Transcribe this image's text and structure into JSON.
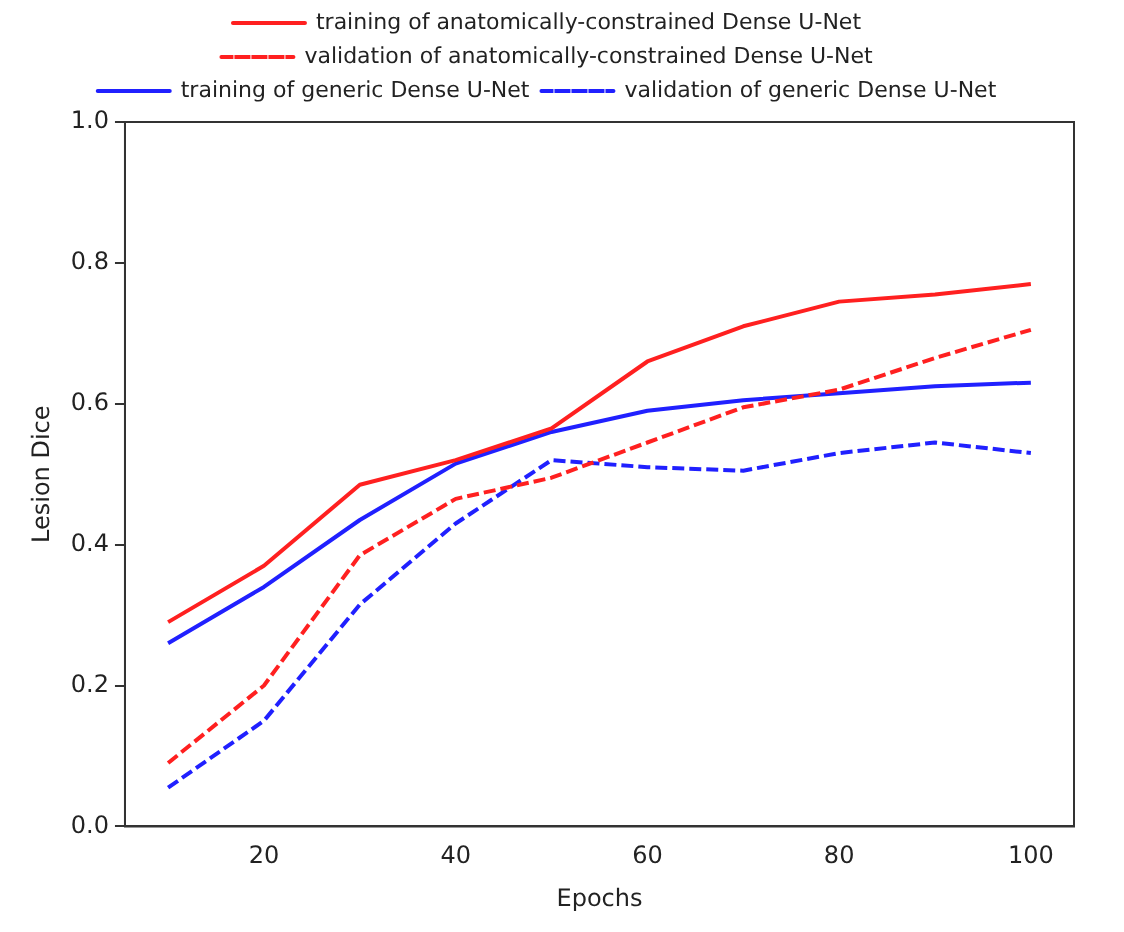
{
  "chart_data": {
    "type": "line",
    "xlabel": "Epochs",
    "ylabel": "Lesion Dice",
    "x": [
      10,
      20,
      30,
      40,
      50,
      60,
      70,
      80,
      90,
      100
    ],
    "xlim": [
      5.5,
      104.5
    ],
    "xticks": [
      20,
      40,
      60,
      80,
      100
    ],
    "ylim": [
      0,
      1
    ],
    "yticks": [
      {
        "value": 0,
        "label": "0.0"
      },
      0.2,
      0.4,
      0.6,
      0.8,
      {
        "value": 1,
        "label": "1.0"
      }
    ],
    "grid": false,
    "legend": "top",
    "marker": "none",
    "series": [
      {
        "name": "training of anatomically-constrained Dense U-Net",
        "color": "#ff2020",
        "line_style": "solid",
        "values": [
          0.29,
          0.37,
          0.485,
          0.52,
          0.565,
          0.66,
          0.71,
          0.745,
          0.755,
          0.77
        ]
      },
      {
        "name": "validation of anatomically-constrained Dense U-Net",
        "color": "#ff2020",
        "line_style": "dashed",
        "values": [
          0.09,
          0.2,
          0.385,
          0.465,
          0.495,
          0.545,
          0.595,
          0.62,
          0.665,
          0.705
        ]
      },
      {
        "name": "training of generic Dense U-Net",
        "color": "#2020ff",
        "line_style": "solid",
        "values": [
          0.26,
          0.34,
          0.435,
          0.515,
          0.56,
          0.59,
          0.605,
          0.615,
          0.625,
          0.63
        ]
      },
      {
        "name": "validation of generic Dense U-Net",
        "color": "#2020ff",
        "line_style": "dashed",
        "values": [
          0.055,
          0.15,
          0.315,
          0.43,
          0.52,
          0.51,
          0.505,
          0.53,
          0.545,
          0.53
        ]
      }
    ]
  }
}
